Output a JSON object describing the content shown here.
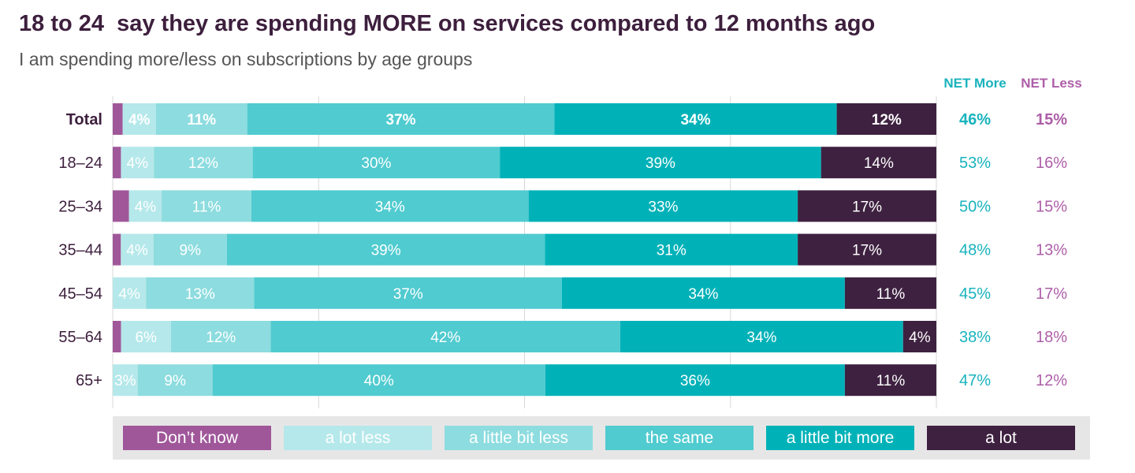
{
  "title": "18 to 24  say they are spending MORE on services compared to 12 months ago",
  "subtitle": "I am spending more/less on subscriptions by age groups",
  "colors": {
    "dont_know": "#a0579a",
    "a_lot_less": "#b5e8ea",
    "a_little_bit_less": "#8ddcdf",
    "the_same": "#50cbd0",
    "a_little_bit_more": "#00b2b8",
    "a_lot": "#3e2140",
    "net_more": "#18b3bd",
    "net_less": "#ad5ea8",
    "row_label": "#3d1f3d",
    "grid": "#d8d8d8"
  },
  "chart_data": {
    "type": "bar",
    "orientation": "horizontal",
    "stacked": true,
    "title": "18 to 24  say they are spending MORE on services compared to 12 months ago",
    "subtitle": "I am spending more/less on subscriptions by age groups",
    "xlim": [
      0,
      100
    ],
    "grid": true,
    "legend_position": "bottom",
    "categories": [
      "Total",
      "18–24",
      "25–34",
      "35–44",
      "45–54",
      "55–64",
      "65+"
    ],
    "series": [
      {
        "name": "Don’t know",
        "key": "dont_know",
        "values": [
          1.2,
          1,
          2,
          1,
          0,
          1,
          0
        ],
        "labels": [
          "",
          "",
          "",
          "",
          "",
          "",
          ""
        ]
      },
      {
        "name": "a lot less",
        "key": "a_lot_less",
        "values": [
          4,
          4,
          4,
          4,
          4,
          6,
          3
        ],
        "labels": [
          "4%",
          "4%",
          "4%",
          "4%",
          "4%",
          "6%",
          "3%"
        ]
      },
      {
        "name": "a little bit less",
        "key": "a_little_bit_less",
        "values": [
          11,
          12,
          11,
          9,
          13,
          12,
          9
        ],
        "labels": [
          "11%",
          "12%",
          "11%",
          "9%",
          "13%",
          "12%",
          "9%"
        ]
      },
      {
        "name": "the same",
        "key": "the_same",
        "values": [
          37,
          30,
          34,
          39,
          37,
          42,
          40
        ],
        "labels": [
          "37%",
          "30%",
          "34%",
          "39%",
          "37%",
          "42%",
          "40%"
        ]
      },
      {
        "name": "a little bit more",
        "key": "a_little_bit_more",
        "values": [
          34,
          39,
          33,
          31,
          34,
          34,
          36
        ],
        "labels": [
          "34%",
          "39%",
          "33%",
          "31%",
          "34%",
          "34%",
          "36%"
        ]
      },
      {
        "name": "a lot",
        "key": "a_lot",
        "values": [
          12,
          14,
          17,
          17,
          11,
          4,
          11
        ],
        "labels": [
          "12%",
          "14%",
          "17%",
          "17%",
          "11%",
          "4%",
          "11%"
        ]
      }
    ],
    "net_more": {
      "header": "NET More",
      "values": [
        "46%",
        "53%",
        "50%",
        "48%",
        "45%",
        "38%",
        "47%"
      ]
    },
    "net_less": {
      "header": "NET Less",
      "values": [
        "15%",
        "16%",
        "15%",
        "13%",
        "17%",
        "18%",
        "12%"
      ]
    },
    "bold_rows": [
      0
    ]
  },
  "legend": {
    "items": [
      {
        "label": "Don’t know",
        "key": "dont_know"
      },
      {
        "label": "a lot less",
        "key": "a_lot_less"
      },
      {
        "label": "a little bit less",
        "key": "a_little_bit_less"
      },
      {
        "label": "the same",
        "key": "the_same"
      },
      {
        "label": "a little bit more",
        "key": "a_little_bit_more"
      },
      {
        "label": "a lot",
        "key": "a_lot"
      }
    ]
  }
}
